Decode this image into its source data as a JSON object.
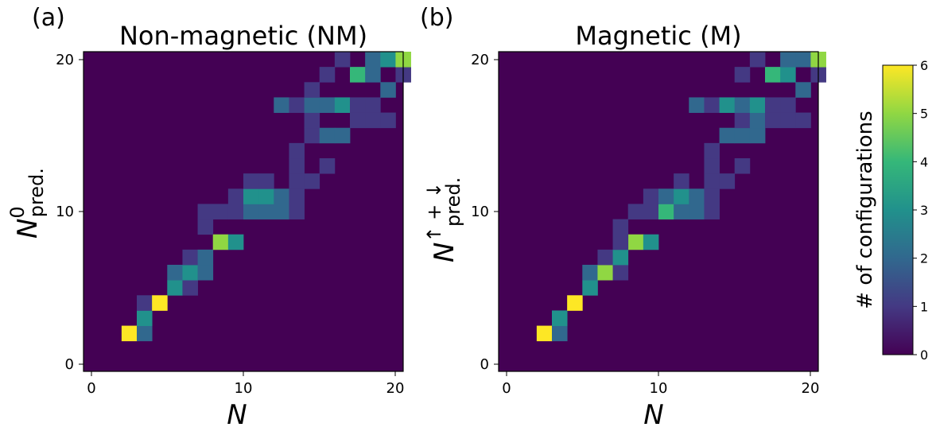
{
  "chart_data": [
    {
      "type": "heatmap",
      "panel_label": "(a)",
      "title": "Non-magnetic (NM)",
      "xlabel": "N",
      "ylabel_main": "N",
      "ylabel_sup": "0",
      "ylabel_sub": "pred.",
      "xlim": [
        -0.5,
        20.5
      ],
      "ylim": [
        -0.5,
        20.5
      ],
      "xticks": [
        "0",
        "10",
        "20"
      ],
      "yticks": [
        "0",
        "10",
        "20"
      ],
      "cells": [
        {
          "x": 2,
          "y": 2,
          "v": 6
        },
        {
          "x": 3,
          "y": 2,
          "v": 2
        },
        {
          "x": 3,
          "y": 3,
          "v": 3
        },
        {
          "x": 3,
          "y": 4,
          "v": 1
        },
        {
          "x": 4,
          "y": 4,
          "v": 6
        },
        {
          "x": 5,
          "y": 5,
          "v": 3
        },
        {
          "x": 6,
          "y": 5,
          "v": 1
        },
        {
          "x": 5,
          "y": 6,
          "v": 2
        },
        {
          "x": 6,
          "y": 6,
          "v": 3
        },
        {
          "x": 7,
          "y": 6,
          "v": 2
        },
        {
          "x": 6,
          "y": 7,
          "v": 1
        },
        {
          "x": 7,
          "y": 7,
          "v": 2
        },
        {
          "x": 8,
          "y": 8,
          "v": 5
        },
        {
          "x": 9,
          "y": 8,
          "v": 3
        },
        {
          "x": 7,
          "y": 9,
          "v": 1
        },
        {
          "x": 7,
          "y": 10,
          "v": 1
        },
        {
          "x": 8,
          "y": 10,
          "v": 1
        },
        {
          "x": 9,
          "y": 10,
          "v": 1
        },
        {
          "x": 10,
          "y": 10,
          "v": 2
        },
        {
          "x": 11,
          "y": 10,
          "v": 2
        },
        {
          "x": 12,
          "y": 10,
          "v": 2
        },
        {
          "x": 13,
          "y": 10,
          "v": 1
        },
        {
          "x": 9,
          "y": 11,
          "v": 1
        },
        {
          "x": 10,
          "y": 11,
          "v": 3
        },
        {
          "x": 11,
          "y": 11,
          "v": 3
        },
        {
          "x": 12,
          "y": 11,
          "v": 2
        },
        {
          "x": 13,
          "y": 11,
          "v": 1
        },
        {
          "x": 10,
          "y": 12,
          "v": 1
        },
        {
          "x": 11,
          "y": 12,
          "v": 1
        },
        {
          "x": 13,
          "y": 12,
          "v": 1
        },
        {
          "x": 14,
          "y": 12,
          "v": 1
        },
        {
          "x": 13,
          "y": 13,
          "v": 1
        },
        {
          "x": 15,
          "y": 13,
          "v": 1
        },
        {
          "x": 13,
          "y": 14,
          "v": 1
        },
        {
          "x": 14,
          "y": 15,
          "v": 1
        },
        {
          "x": 15,
          "y": 15,
          "v": 2
        },
        {
          "x": 16,
          "y": 15,
          "v": 2
        },
        {
          "x": 14,
          "y": 16,
          "v": 1
        },
        {
          "x": 17,
          "y": 16,
          "v": 1
        },
        {
          "x": 18,
          "y": 16,
          "v": 1
        },
        {
          "x": 19,
          "y": 16,
          "v": 1
        },
        {
          "x": 12,
          "y": 17,
          "v": 2
        },
        {
          "x": 13,
          "y": 17,
          "v": 1
        },
        {
          "x": 14,
          "y": 17,
          "v": 2
        },
        {
          "x": 15,
          "y": 17,
          "v": 2
        },
        {
          "x": 16,
          "y": 17,
          "v": 3
        },
        {
          "x": 17,
          "y": 17,
          "v": 1
        },
        {
          "x": 18,
          "y": 17,
          "v": 1
        },
        {
          "x": 14,
          "y": 18,
          "v": 1
        },
        {
          "x": 19,
          "y": 18,
          "v": 2
        },
        {
          "x": 15,
          "y": 19,
          "v": 1
        },
        {
          "x": 17,
          "y": 19,
          "v": 4
        },
        {
          "x": 18,
          "y": 19,
          "v": 2
        },
        {
          "x": 20,
          "y": 19,
          "v": 1
        },
        {
          "x": 16,
          "y": 20,
          "v": 1
        },
        {
          "x": 18,
          "y": 20,
          "v": 2
        },
        {
          "x": 19,
          "y": 20,
          "v": 3
        },
        {
          "x": 20,
          "y": 20,
          "v": 5
        }
      ]
    },
    {
      "type": "heatmap",
      "panel_label": "(b)",
      "title": "Magnetic (M)",
      "xlabel": "N",
      "ylabel_main": "N",
      "ylabel_sup": "↑ + ↓",
      "ylabel_sub": "pred.",
      "xlim": [
        -0.5,
        20.5
      ],
      "ylim": [
        -0.5,
        20.5
      ],
      "xticks": [
        "0",
        "10",
        "20"
      ],
      "yticks": [
        "0",
        "10",
        "20"
      ],
      "cells": [
        {
          "x": 2,
          "y": 2,
          "v": 6
        },
        {
          "x": 3,
          "y": 2,
          "v": 2
        },
        {
          "x": 3,
          "y": 3,
          "v": 3
        },
        {
          "x": 4,
          "y": 4,
          "v": 6
        },
        {
          "x": 5,
          "y": 5,
          "v": 3
        },
        {
          "x": 5,
          "y": 6,
          "v": 2
        },
        {
          "x": 6,
          "y": 6,
          "v": 5
        },
        {
          "x": 7,
          "y": 6,
          "v": 1
        },
        {
          "x": 6,
          "y": 7,
          "v": 1
        },
        {
          "x": 7,
          "y": 7,
          "v": 3
        },
        {
          "x": 8,
          "y": 8,
          "v": 5
        },
        {
          "x": 9,
          "y": 8,
          "v": 3
        },
        {
          "x": 7,
          "y": 8,
          "v": 1
        },
        {
          "x": 7,
          "y": 9,
          "v": 1
        },
        {
          "x": 8,
          "y": 10,
          "v": 1
        },
        {
          "x": 9,
          "y": 10,
          "v": 1
        },
        {
          "x": 10,
          "y": 10,
          "v": 4
        },
        {
          "x": 11,
          "y": 10,
          "v": 2
        },
        {
          "x": 12,
          "y": 10,
          "v": 2
        },
        {
          "x": 13,
          "y": 10,
          "v": 1
        },
        {
          "x": 9,
          "y": 11,
          "v": 1
        },
        {
          "x": 10,
          "y": 11,
          "v": 2
        },
        {
          "x": 11,
          "y": 11,
          "v": 3
        },
        {
          "x": 12,
          "y": 11,
          "v": 2
        },
        {
          "x": 13,
          "y": 11,
          "v": 1
        },
        {
          "x": 11,
          "y": 12,
          "v": 1
        },
        {
          "x": 13,
          "y": 12,
          "v": 1
        },
        {
          "x": 14,
          "y": 12,
          "v": 1
        },
        {
          "x": 13,
          "y": 13,
          "v": 1
        },
        {
          "x": 15,
          "y": 13,
          "v": 1
        },
        {
          "x": 13,
          "y": 14,
          "v": 1
        },
        {
          "x": 14,
          "y": 15,
          "v": 2
        },
        {
          "x": 15,
          "y": 15,
          "v": 2
        },
        {
          "x": 16,
          "y": 15,
          "v": 2
        },
        {
          "x": 15,
          "y": 16,
          "v": 1
        },
        {
          "x": 16,
          "y": 16,
          "v": 2
        },
        {
          "x": 17,
          "y": 16,
          "v": 1
        },
        {
          "x": 18,
          "y": 16,
          "v": 1
        },
        {
          "x": 19,
          "y": 16,
          "v": 1
        },
        {
          "x": 12,
          "y": 17,
          "v": 2
        },
        {
          "x": 13,
          "y": 17,
          "v": 1
        },
        {
          "x": 14,
          "y": 17,
          "v": 3
        },
        {
          "x": 15,
          "y": 17,
          "v": 2
        },
        {
          "x": 16,
          "y": 17,
          "v": 3
        },
        {
          "x": 17,
          "y": 17,
          "v": 1
        },
        {
          "x": 18,
          "y": 17,
          "v": 1
        },
        {
          "x": 19,
          "y": 18,
          "v": 2
        },
        {
          "x": 15,
          "y": 19,
          "v": 1
        },
        {
          "x": 17,
          "y": 19,
          "v": 4
        },
        {
          "x": 18,
          "y": 19,
          "v": 3
        },
        {
          "x": 20,
          "y": 19,
          "v": 1
        },
        {
          "x": 16,
          "y": 20,
          "v": 1
        },
        {
          "x": 18,
          "y": 20,
          "v": 2
        },
        {
          "x": 19,
          "y": 20,
          "v": 2
        },
        {
          "x": 20,
          "y": 20,
          "v": 5
        }
      ]
    }
  ],
  "colorbar": {
    "label": "# of configurations",
    "min": 0,
    "max": 6,
    "ticks": [
      "0",
      "1",
      "2",
      "3",
      "4",
      "5",
      "6"
    ],
    "colormap": "viridis"
  }
}
